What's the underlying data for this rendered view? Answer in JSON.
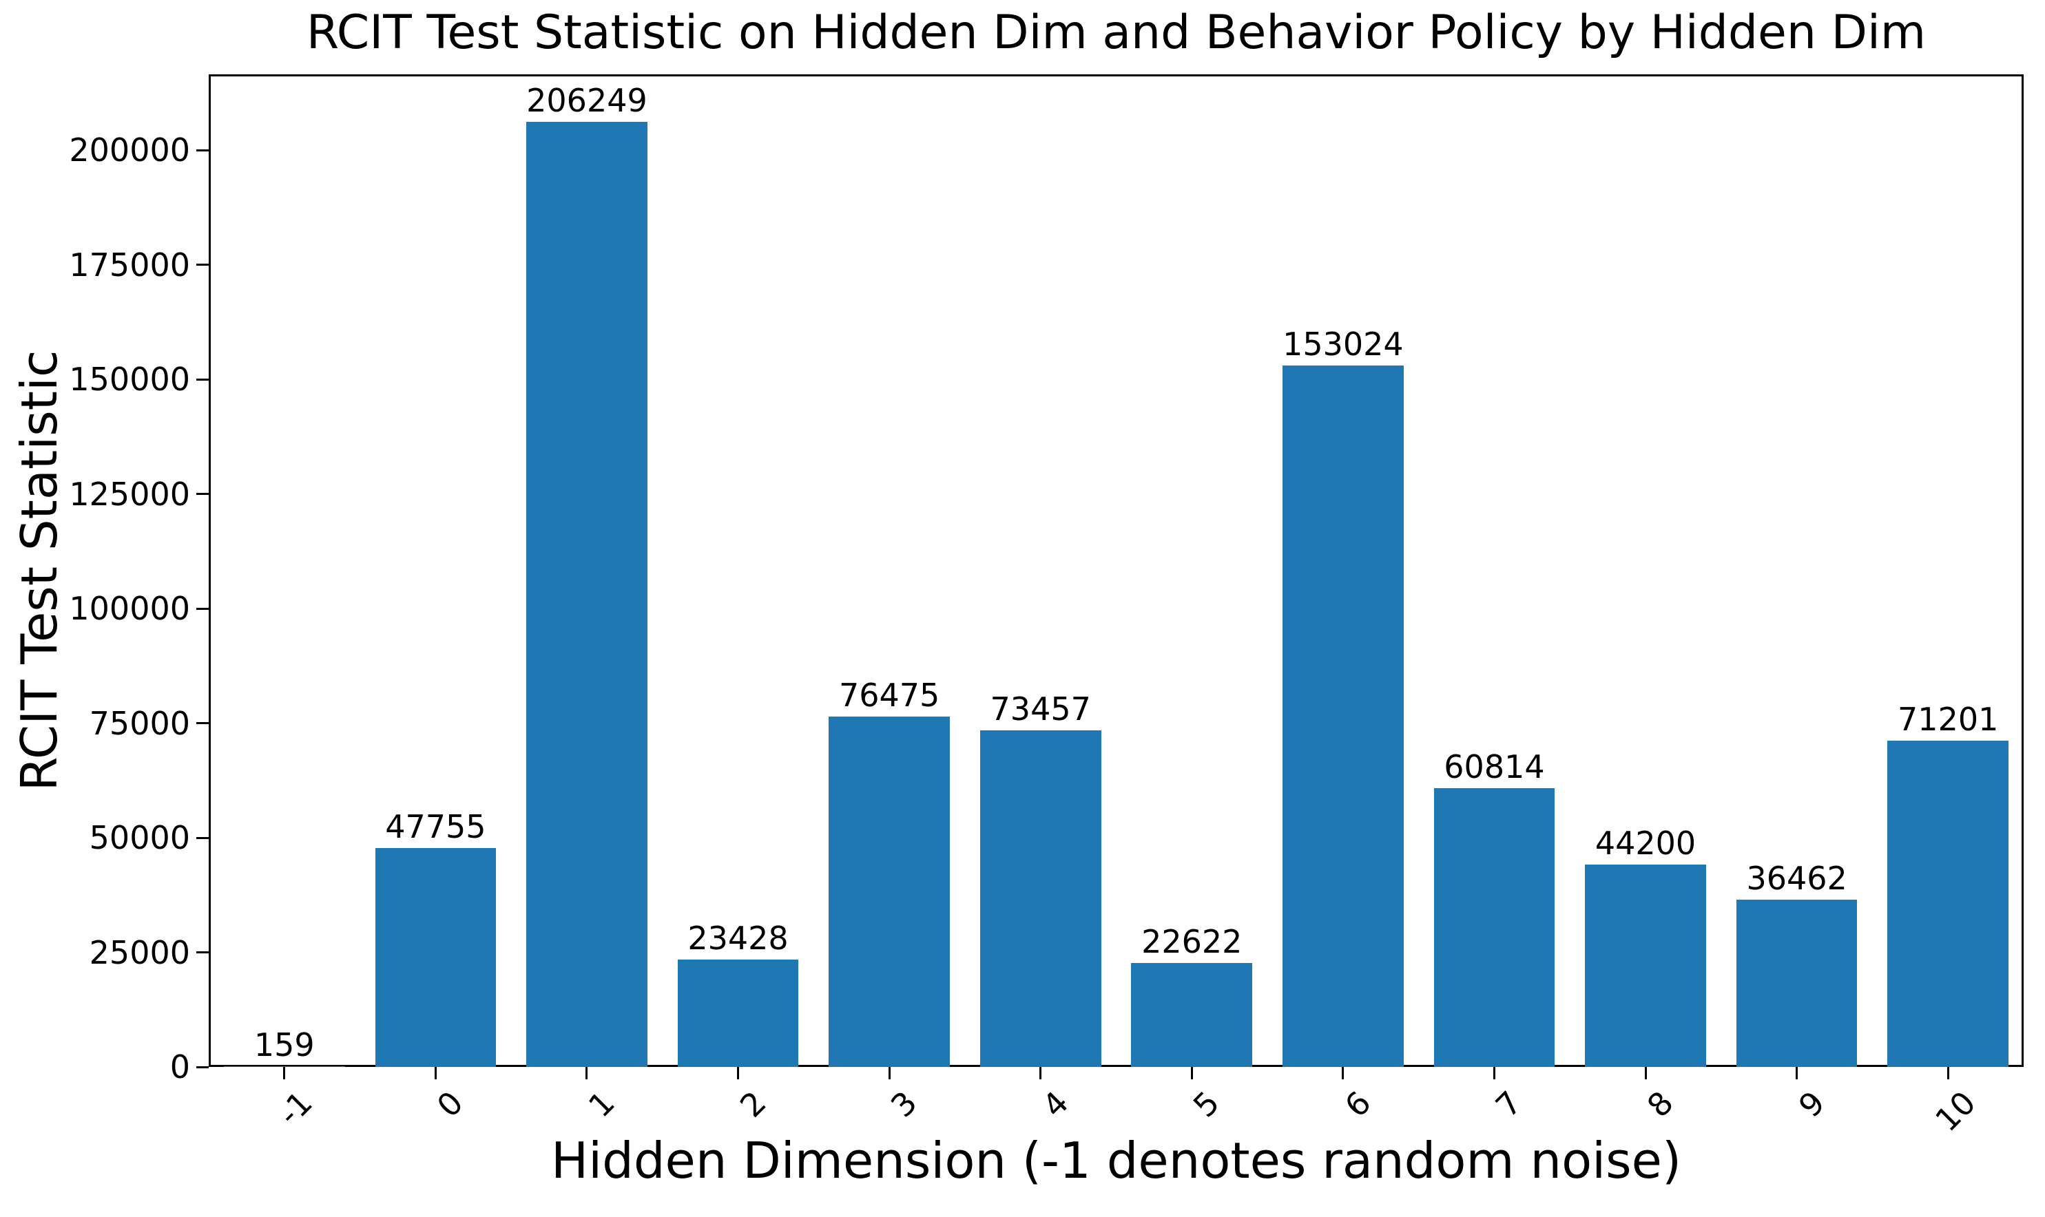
{
  "chart_data": {
    "type": "bar",
    "title": "RCIT Test Statistic on Hidden Dim and Behavior Policy by Hidden Dim",
    "xlabel": "Hidden Dimension (-1 denotes random noise)",
    "ylabel": "RCIT Test Statistic",
    "categories": [
      "-1",
      "0",
      "1",
      "2",
      "3",
      "4",
      "5",
      "6",
      "7",
      "8",
      "9",
      "10"
    ],
    "values": [
      159,
      47755,
      206249,
      23428,
      76475,
      73457,
      22622,
      153024,
      60814,
      44200,
      36462,
      71201
    ],
    "bar_value_labels": [
      "159",
      "47755",
      "206249",
      "23428",
      "76475",
      "73457",
      "22622",
      "153024",
      "60814",
      "44200",
      "36462",
      "71201"
    ],
    "yticks": [
      0,
      25000,
      50000,
      75000,
      100000,
      125000,
      150000,
      175000,
      200000
    ],
    "ytick_labels": [
      "0",
      "25000",
      "50000",
      "75000",
      "100000",
      "125000",
      "150000",
      "175000",
      "200000"
    ],
    "ylim": [
      0,
      216561
    ],
    "xtick_rotation_deg": 45,
    "grid": false,
    "legend_position": "none",
    "bar_color": "#1f77b4",
    "axis_color": "#000000",
    "text_color": "#000000",
    "background_color": "#ffffff"
  }
}
